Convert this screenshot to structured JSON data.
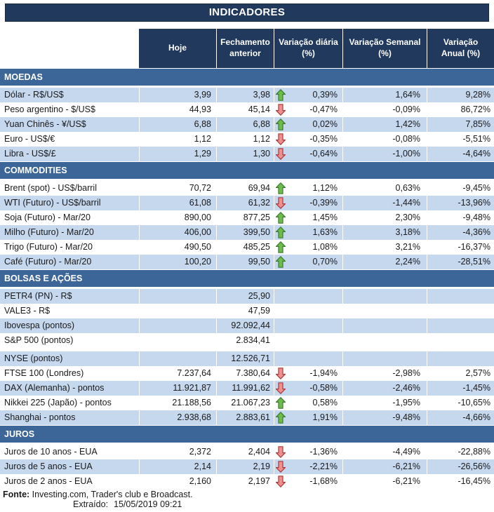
{
  "title": "INDICADORES",
  "columns": [
    "Hoje",
    "Fechamento\nanterior",
    "Variação diária\n(%)",
    "Variação Semanal\n(%)",
    "Variação\nAnual (%)"
  ],
  "sections": [
    {
      "name": "MOEDAS",
      "rows": [
        {
          "label": "Dólar - R$/US$",
          "hoje": "3,99",
          "fechamento": "3,98",
          "arrow": "up",
          "var_diaria": "0,39%",
          "var_semanal": "1,64%",
          "var_anual": "9,28%"
        },
        {
          "label": "Peso argentino - $/US$",
          "hoje": "44,93",
          "fechamento": "45,14",
          "arrow": "down",
          "var_diaria": "-0,47%",
          "var_semanal": "-0,09%",
          "var_anual": "86,72%"
        },
        {
          "label": "Yuan Chinês - ¥/US$",
          "hoje": "6,88",
          "fechamento": "6,88",
          "arrow": "up",
          "var_diaria": "0,02%",
          "var_semanal": "1,42%",
          "var_anual": "7,85%"
        },
        {
          "label": "Euro - US$/€",
          "hoje": "1,12",
          "fechamento": "1,12",
          "arrow": "down",
          "var_diaria": "-0,35%",
          "var_semanal": "-0,08%",
          "var_anual": "-5,51%"
        },
        {
          "label": "Libra - US$/£",
          "hoje": "1,29",
          "fechamento": "1,30",
          "arrow": "down",
          "var_diaria": "-0,64%",
          "var_semanal": "-1,00%",
          "var_anual": "-4,64%"
        }
      ]
    },
    {
      "name": "COMMODITIES",
      "rows": [
        {
          "label": "Brent (spot) - US$/barril",
          "hoje": "70,72",
          "fechamento": "69,94",
          "arrow": "up",
          "var_diaria": "1,12%",
          "var_semanal": "0,63%",
          "var_anual": "-9,45%"
        },
        {
          "label": "WTI (Futuro) - US$/barril",
          "hoje": "61,08",
          "fechamento": "61,32",
          "arrow": "down",
          "var_diaria": "-0,39%",
          "var_semanal": "-1,44%",
          "var_anual": "-13,96%"
        },
        {
          "label": "Soja (Futuro) - Mar/20",
          "hoje": "890,00",
          "fechamento": "877,25",
          "arrow": "up",
          "var_diaria": "1,45%",
          "var_semanal": "2,30%",
          "var_anual": "-9,48%"
        },
        {
          "label": "Milho (Futuro) - Mar/20",
          "hoje": "406,00",
          "fechamento": "399,50",
          "arrow": "up",
          "var_diaria": "1,63%",
          "var_semanal": "3,18%",
          "var_anual": "-4,36%"
        },
        {
          "label": "Trigo (Futuro) - Mar/20",
          "hoje": "490,50",
          "fechamento": "485,25",
          "arrow": "up",
          "var_diaria": "1,08%",
          "var_semanal": "3,21%",
          "var_anual": "-16,37%"
        },
        {
          "label": "Café (Futuro) - Mar/20",
          "hoje": "100,20",
          "fechamento": "99,50",
          "arrow": "up",
          "var_diaria": "0,70%",
          "var_semanal": "2,24%",
          "var_anual": "-28,51%"
        }
      ]
    },
    {
      "name": "BOLSAS E AÇÕES",
      "rows": [
        {
          "label": "PETR4 (PN) - R$",
          "hoje": "",
          "fechamento": "25,90",
          "arrow": "",
          "var_diaria": "",
          "var_semanal": "",
          "var_anual": ""
        },
        {
          "label": "VALE3 - R$",
          "hoje": "",
          "fechamento": "47,59",
          "arrow": "",
          "var_diaria": "",
          "var_semanal": "",
          "var_anual": ""
        },
        {
          "label": "Ibovespa (pontos)",
          "hoje": "",
          "fechamento": "92.092,44",
          "arrow": "",
          "var_diaria": "",
          "var_semanal": "",
          "var_anual": ""
        },
        {
          "label": "S&P 500 (pontos)",
          "hoje": "",
          "fechamento": "2.834,41",
          "arrow": "",
          "var_diaria": "",
          "var_semanal": "",
          "var_anual": ""
        },
        {
          "label": "NYSE (pontos)",
          "hoje": "",
          "fechamento": "12.526,71",
          "arrow": "",
          "var_diaria": "",
          "var_semanal": "",
          "var_anual": "",
          "spacer_before": true
        },
        {
          "label": "FTSE 100 (Londres)",
          "hoje": "7.237,64",
          "fechamento": "7.380,64",
          "arrow": "down",
          "var_diaria": "-1,94%",
          "var_semanal": "-2,98%",
          "var_anual": "2,57%"
        },
        {
          "label": "DAX (Alemanha) - pontos",
          "hoje": "11.921,87",
          "fechamento": "11.991,62",
          "arrow": "down",
          "var_diaria": "-0,58%",
          "var_semanal": "-2,46%",
          "var_anual": "-1,45%"
        },
        {
          "label": "Nikkei 225 (Japão) - pontos",
          "hoje": "21.188,56",
          "fechamento": "21.067,23",
          "arrow": "up",
          "var_diaria": "0,58%",
          "var_semanal": "-1,95%",
          "var_anual": "-10,65%"
        },
        {
          "label": "Shanghai - pontos",
          "hoje": "2.938,68",
          "fechamento": "2.883,61",
          "arrow": "up",
          "var_diaria": "1,91%",
          "var_semanal": "-9,48%",
          "var_anual": "-4,66%"
        }
      ]
    },
    {
      "name": "JUROS",
      "rows": [
        {
          "label": "Juros de 10 anos - EUA",
          "hoje": "2,372",
          "fechamento": "2,404",
          "arrow": "down",
          "var_diaria": "-1,36%",
          "var_semanal": "-4,49%",
          "var_anual": "-22,88%"
        },
        {
          "label": "Juros de 5 anos - EUA",
          "hoje": "2,14",
          "fechamento": "2,19",
          "arrow": "down",
          "var_diaria": "-2,21%",
          "var_semanal": "-6,21%",
          "var_anual": "-26,56%"
        },
        {
          "label": "Juros de 2 anos - EUA",
          "hoje": "2,160",
          "fechamento": "2,197",
          "arrow": "down",
          "var_diaria": "-1,68%",
          "var_semanal": "-6,21%",
          "var_anual": "-16,45%"
        }
      ]
    }
  ],
  "footer": {
    "fonte_label": "Fonte:",
    "fonte_text": " Investing.com, Trader's club e Broadcast.",
    "extraido_label": "Extraído:",
    "extraido_value": "15/05/2019 09:21"
  },
  "icons": {
    "up": "arrow-up-icon",
    "down": "arrow-down-icon"
  },
  "colors": {
    "header_bg": "#20395C",
    "section_bg": "#3C6698",
    "row_blue": "#C5D8EE",
    "arrow_up_fill": "#6FBC4C",
    "arrow_up_stroke": "#3A7D2E",
    "arrow_down_fill": "#EE9090",
    "arrow_down_stroke": "#AC3B3B"
  }
}
